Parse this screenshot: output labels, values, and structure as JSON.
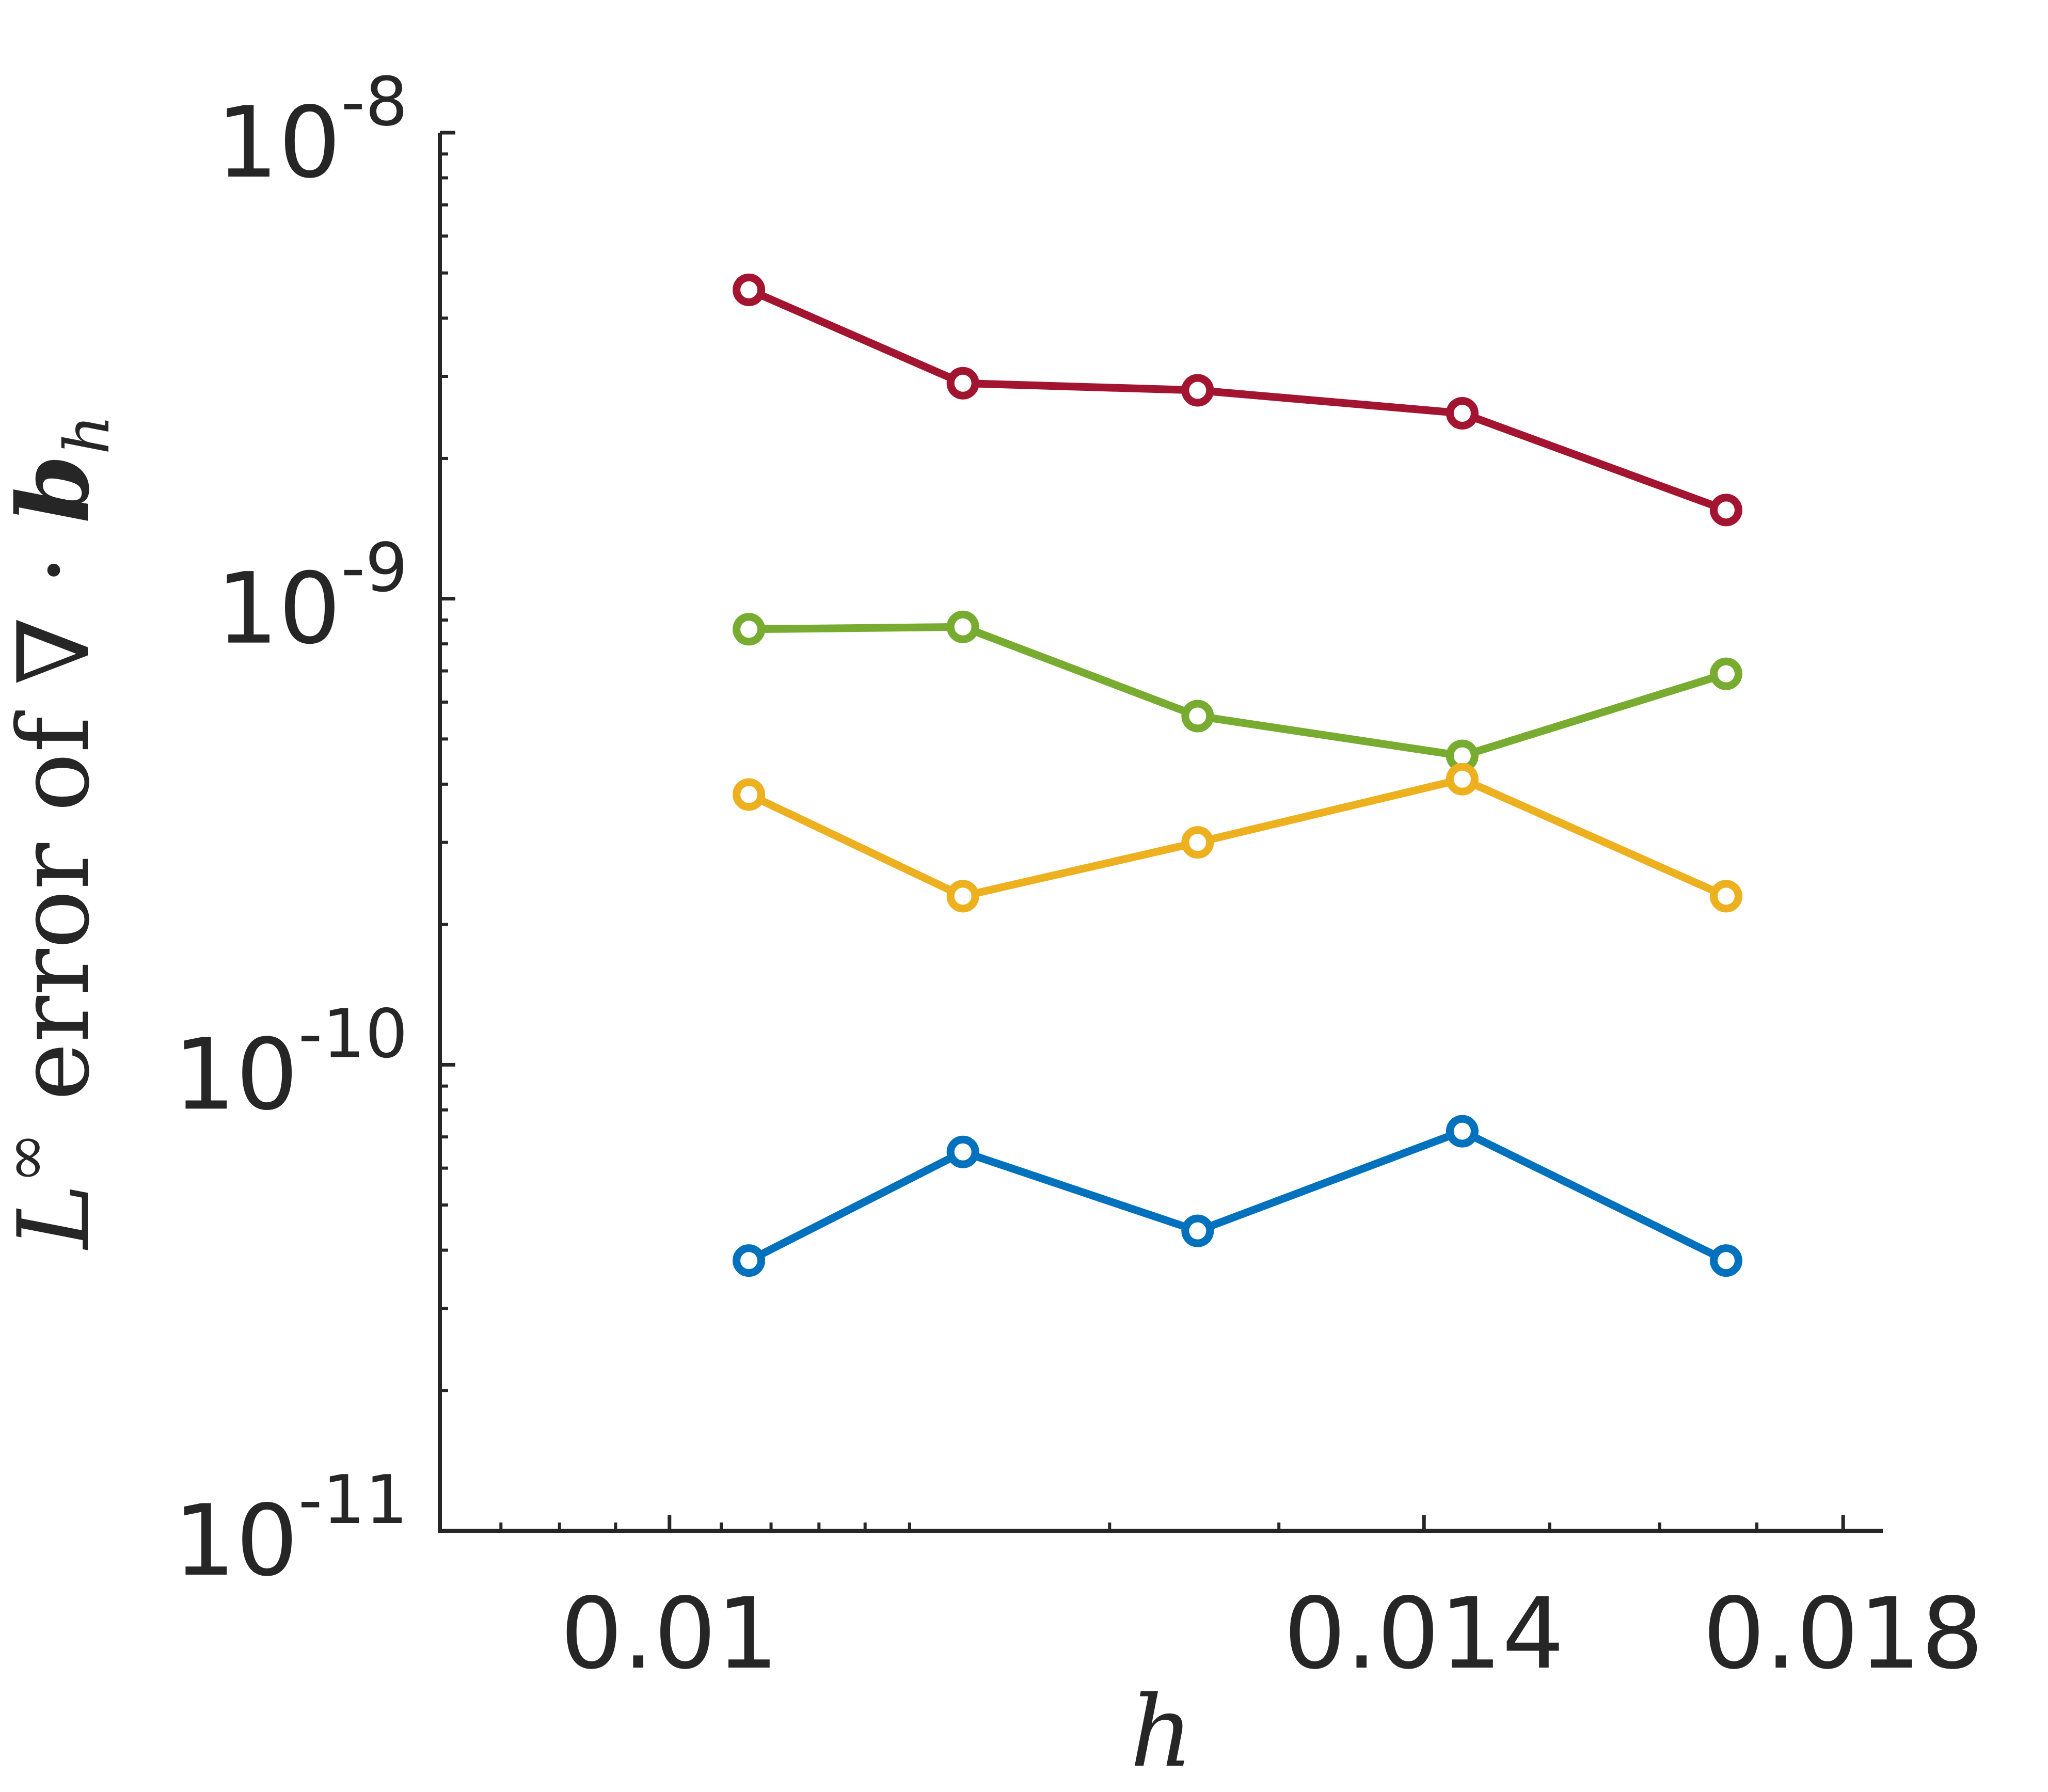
{
  "chart_data": {
    "type": "line",
    "xlabel": "h",
    "ylabel_parts": [
      "L",
      "∞",
      " error of ∇ · ",
      "b",
      "h"
    ],
    "x_scale": "reciprocal",
    "y_scale": "log",
    "xlim": [
      0.0092,
      0.0185
    ],
    "ylim": [
      1e-11,
      1e-08
    ],
    "x_ticks": [
      0.01,
      0.014,
      0.018
    ],
    "x_tick_labels": [
      "0.01",
      "0.014",
      "0.018"
    ],
    "y_ticks": [
      1e-11,
      1e-10,
      1e-09,
      1e-08
    ],
    "y_tick_labels": [
      {
        "base": "10",
        "exp": "-11"
      },
      {
        "base": "10",
        "exp": "-10"
      },
      {
        "base": "10",
        "exp": "-9"
      },
      {
        "base": "10",
        "exp": "-8"
      }
    ],
    "x": [
      0.01031,
      0.01125,
      0.0125,
      0.01429,
      0.01667
    ],
    "series": [
      {
        "color": "#A2142F",
        "values": [
          4.6e-09,
          2.9e-09,
          2.8e-09,
          2.5e-09,
          1.55e-09
        ]
      },
      {
        "color": "#77AC30",
        "values": [
          8.6e-10,
          8.7e-10,
          5.6e-10,
          4.6e-10,
          6.9e-10
        ]
      },
      {
        "color": "#EDB120",
        "values": [
          3.8e-10,
          2.3e-10,
          3e-10,
          4.1e-10,
          2.3e-10
        ]
      },
      {
        "color": "#0072BD",
        "values": [
          3.8e-11,
          6.5e-11,
          4.4e-11,
          7.2e-11,
          3.8e-11
        ]
      }
    ],
    "grid": false,
    "legend": "none"
  }
}
